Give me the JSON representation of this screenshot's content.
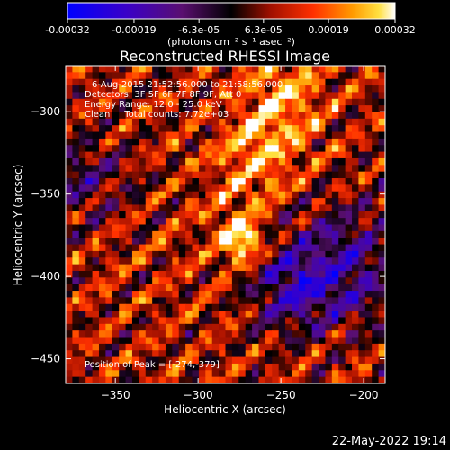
{
  "chart_data": {
    "type": "heatmap",
    "title": "Reconstructed RHESSI Image",
    "xlabel": "Heliocentric X (arcsec)",
    "ylabel": "Heliocentric Y (arcsec)",
    "xlim": [
      -380,
      -187
    ],
    "ylim": [
      -465,
      -272
    ],
    "xticks": [
      -350,
      -300,
      -250,
      -200
    ],
    "yticks": [
      -300,
      -350,
      -400,
      -450
    ],
    "colorbar": {
      "ticks": [
        "-0.00032",
        "-0.00019",
        "-6.3e-05",
        "6.3e-05",
        "0.00019",
        "0.00032"
      ],
      "tick_values": [
        -0.00032,
        -0.00019,
        -6.3e-05,
        6.3e-05,
        0.00019,
        0.00032
      ],
      "range": [
        -0.00032,
        0.00032
      ],
      "unit_label": "(photons cm⁻² s⁻¹ asec⁻²)"
    },
    "annotations": [
      "6-Aug-2015 21:52:56.000 to 21:58:56.000",
      "Detectors: 3F 5F 6F 7F 8F 9F, Att 0",
      "Energy Range: 12.0 - 25.0 keV",
      "Clean     Total counts: 7.72e+03"
    ],
    "peak_label": "Position of Peak = [-274,-379]",
    "peak": [
      -274,
      -379
    ],
    "grid": false
  },
  "timestamp": "22-May-2022 19:14",
  "colors": {
    "background": "#000000",
    "text": "#ffffff"
  }
}
